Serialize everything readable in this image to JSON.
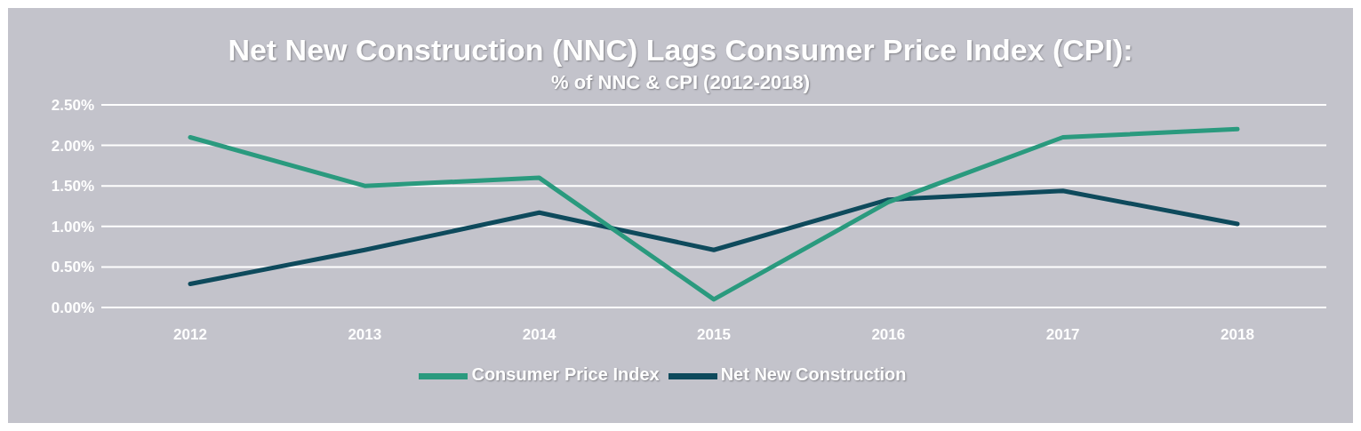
{
  "chart_data": {
    "type": "line",
    "title": "Net New Construction (NNC) Lags Consumer Price Index (CPI):",
    "subtitle": "% of NNC & CPI (2012-2018)",
    "categories": [
      "2012",
      "2013",
      "2014",
      "2015",
      "2016",
      "2017",
      "2018"
    ],
    "series": [
      {
        "name": "Net New Construction",
        "color": "#0e4a5c",
        "values": [
          0.29,
          0.71,
          1.17,
          0.71,
          1.33,
          1.44,
          1.03
        ]
      },
      {
        "name": "Consumer Price Index",
        "color": "#2a9a7e",
        "values": [
          2.1,
          1.5,
          1.6,
          0.1,
          1.3,
          2.1,
          2.2
        ]
      }
    ],
    "ylim": [
      0,
      2.5
    ],
    "yticks": [
      {
        "value": 0,
        "label": "0.00%"
      },
      {
        "value": 0.5,
        "label": "0.50%"
      },
      {
        "value": 1,
        "label": "1.00%"
      },
      {
        "value": 1.5,
        "label": "1.50%"
      },
      {
        "value": 2,
        "label": "2.00%"
      },
      {
        "value": 2.5,
        "label": "2.50%"
      }
    ],
    "grid": "y",
    "legend": "bottom",
    "marker": "none",
    "line_style": "solid"
  }
}
